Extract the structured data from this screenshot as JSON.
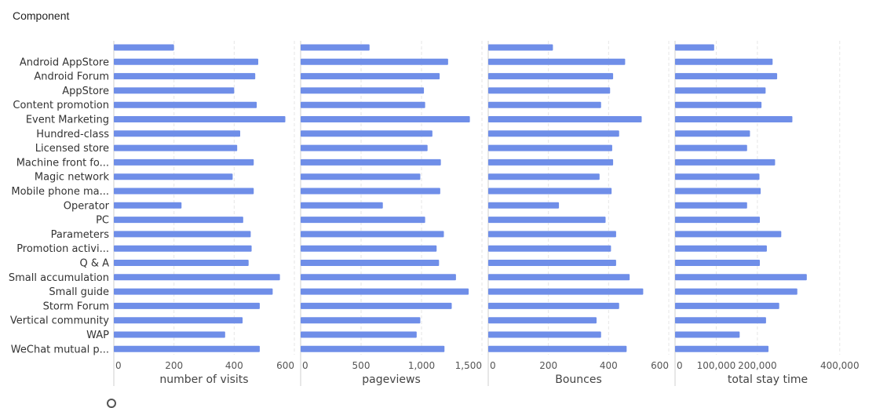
{
  "header": {
    "title": "Component"
  },
  "colors": {
    "bar": "#6f8ee8",
    "grid": "#e6e6e6",
    "axis": "#cfcfcf"
  },
  "chart_data": {
    "type": "bar",
    "orientation": "horizontal",
    "categories": [
      "",
      "Android AppStore",
      "Android Forum",
      "AppStore",
      "Content promotion",
      "Event Marketing",
      "Hundred-class",
      "Licensed store",
      "Machine front fo...",
      "Magic network",
      "Mobile phone ma...",
      "Operator",
      "PC",
      "Parameters",
      "Promotion activi...",
      "Q & A",
      "Small accumulation",
      "Small guide",
      "Storm Forum",
      "Vertical community",
      "WAP",
      "WeChat mutual p..."
    ],
    "panels": [
      {
        "xlabel": "number of visits",
        "xlim": [
          0,
          600
        ],
        "ticks": [
          0,
          200,
          400,
          600
        ],
        "tick_labels": [
          "0",
          "200",
          "400",
          "600"
        ],
        "values": [
          200,
          480,
          470,
          400,
          475,
          570,
          420,
          410,
          465,
          395,
          465,
          225,
          430,
          455,
          458,
          448,
          552,
          528,
          485,
          428,
          370,
          485
        ]
      },
      {
        "xlabel": "pageviews",
        "xlim": [
          0,
          1500
        ],
        "ticks": [
          0,
          500,
          1000,
          1500
        ],
        "tick_labels": [
          "0",
          "500",
          "1,000",
          "1,500"
        ],
        "values": [
          570,
          1220,
          1150,
          1020,
          1030,
          1400,
          1090,
          1050,
          1160,
          990,
          1155,
          680,
          1030,
          1185,
          1125,
          1145,
          1285,
          1390,
          1250,
          990,
          960,
          1190
        ]
      },
      {
        "xlabel": "Bounces",
        "xlim": [
          0,
          600
        ],
        "ticks": [
          0,
          200,
          400,
          600
        ],
        "tick_labels": [
          "0",
          "200",
          "400",
          "600"
        ],
        "values": [
          215,
          455,
          415,
          405,
          375,
          510,
          435,
          412,
          415,
          370,
          410,
          235,
          390,
          425,
          408,
          425,
          470,
          515,
          435,
          360,
          375,
          460
        ]
      },
      {
        "xlabel": "total stay time",
        "xlim": [
          0,
          450000
        ],
        "ticks": [
          0,
          100000,
          200000,
          400000
        ],
        "tick_labels": [
          "0",
          "100,000",
          "200,000",
          "400,000"
        ],
        "values": [
          95000,
          237000,
          248000,
          220000,
          210000,
          285000,
          182000,
          175000,
          243000,
          205000,
          208000,
          175000,
          206000,
          258000,
          223000,
          206000,
          320000,
          297000,
          253000,
          221000,
          157000,
          227000
        ]
      }
    ]
  }
}
